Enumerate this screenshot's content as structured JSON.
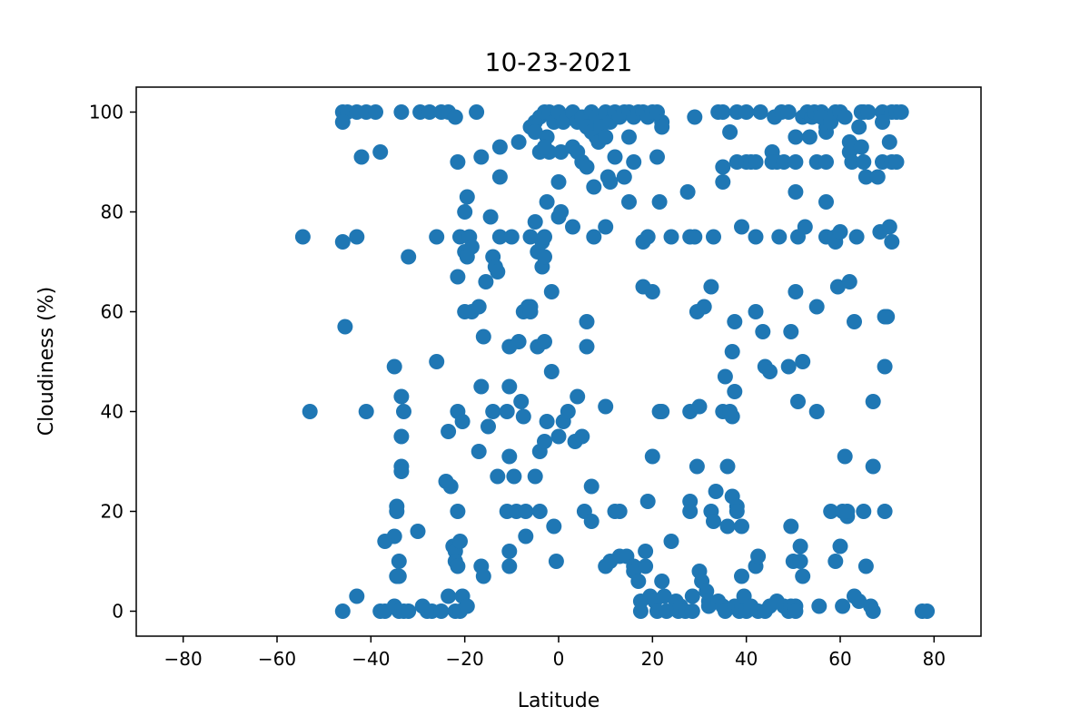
{
  "chart_data": {
    "type": "scatter",
    "title": "10-23-2021",
    "xlabel": "Latitude",
    "ylabel": "Cloudiness (%)",
    "xlim": [
      -90,
      90
    ],
    "ylim": [
      -5,
      105
    ],
    "xticks": [
      -80,
      -60,
      -40,
      -20,
      0,
      20,
      40,
      60,
      80
    ],
    "yticks": [
      0,
      20,
      40,
      60,
      80,
      100
    ],
    "grid": false,
    "legend": "none",
    "color": "#1f77b4",
    "points": [
      [
        -46,
        100
      ],
      [
        -45,
        100
      ],
      [
        -46,
        98
      ],
      [
        -43,
        100
      ],
      [
        -41,
        100
      ],
      [
        -39,
        100
      ],
      [
        -33.5,
        100
      ],
      [
        -29.5,
        100
      ],
      [
        -27.5,
        100
      ],
      [
        -25,
        100
      ],
      [
        -23.5,
        100
      ],
      [
        -22,
        99
      ],
      [
        -17.5,
        100
      ],
      [
        -54.5,
        75
      ],
      [
        -46,
        74
      ],
      [
        -43,
        75
      ],
      [
        -42,
        91
      ],
      [
        -38,
        92
      ],
      [
        -53,
        40
      ],
      [
        -45.5,
        57
      ],
      [
        -32,
        71
      ],
      [
        -26,
        75
      ],
      [
        -26,
        50
      ],
      [
        -41,
        40
      ],
      [
        -35,
        49
      ],
      [
        -33.5,
        43
      ],
      [
        -33,
        40
      ],
      [
        -33.5,
        35
      ],
      [
        -33.5,
        29
      ],
      [
        -33.5,
        28
      ],
      [
        -34.5,
        21
      ],
      [
        -34.5,
        20
      ],
      [
        -30,
        16
      ],
      [
        -35,
        15
      ],
      [
        -37,
        14
      ],
      [
        -34,
        10
      ],
      [
        -34.5,
        7
      ],
      [
        -34,
        7
      ],
      [
        -46,
        0
      ],
      [
        -43,
        3
      ],
      [
        -38,
        0
      ],
      [
        -37,
        0
      ],
      [
        -35,
        1
      ],
      [
        -34,
        0
      ],
      [
        -33,
        0
      ],
      [
        -32,
        0
      ],
      [
        -29,
        1
      ],
      [
        -28,
        0
      ],
      [
        -27,
        0
      ],
      [
        -25,
        0
      ],
      [
        -23.5,
        3
      ],
      [
        -22,
        0
      ],
      [
        -21,
        0
      ],
      [
        -20.5,
        3
      ],
      [
        -19.5,
        1
      ],
      [
        -24,
        26
      ],
      [
        -23.5,
        36
      ],
      [
        -23,
        25
      ],
      [
        -22.5,
        13
      ],
      [
        -22,
        12
      ],
      [
        -22,
        10
      ],
      [
        -21.5,
        9
      ],
      [
        -21,
        14
      ],
      [
        -21.5,
        20
      ],
      [
        -21.5,
        40
      ],
      [
        -20.5,
        38
      ],
      [
        -16.5,
        9
      ],
      [
        -16,
        7
      ],
      [
        -21.5,
        90
      ],
      [
        -21,
        75
      ],
      [
        -20,
        80
      ],
      [
        -19.5,
        83
      ],
      [
        -19,
        75
      ],
      [
        -20,
        72
      ],
      [
        -19.5,
        71
      ],
      [
        -18.5,
        73
      ],
      [
        -21.5,
        67
      ],
      [
        -20,
        60
      ],
      [
        -18.5,
        60
      ],
      [
        -17,
        61
      ],
      [
        -16.5,
        91
      ],
      [
        -16.5,
        45
      ],
      [
        -17,
        32
      ],
      [
        -16,
        55
      ],
      [
        -15.5,
        66
      ],
      [
        -14.5,
        79
      ],
      [
        -14,
        71
      ],
      [
        -13.5,
        69
      ],
      [
        -13,
        68
      ],
      [
        -15,
        37
      ],
      [
        -14,
        40
      ],
      [
        -13,
        27
      ],
      [
        -12.5,
        75
      ],
      [
        -12.5,
        87
      ],
      [
        -12.5,
        93
      ],
      [
        -11,
        40
      ],
      [
        -11,
        20
      ],
      [
        -10.5,
        53
      ],
      [
        -10.5,
        45
      ],
      [
        -10.5,
        31
      ],
      [
        -10.5,
        12
      ],
      [
        -10.5,
        9
      ],
      [
        -10,
        75
      ],
      [
        -9.5,
        27
      ],
      [
        -9,
        20
      ],
      [
        -8.5,
        94
      ],
      [
        -8.5,
        54
      ],
      [
        -8,
        42
      ],
      [
        -7.5,
        60
      ],
      [
        -7.5,
        39
      ],
      [
        -7,
        15
      ],
      [
        -7,
        20
      ],
      [
        -6.5,
        61
      ],
      [
        -6,
        61
      ],
      [
        -6,
        75
      ],
      [
        -6,
        60
      ],
      [
        -5,
        78
      ],
      [
        -5,
        27
      ],
      [
        -4.5,
        53
      ],
      [
        -4.5,
        72
      ],
      [
        -4,
        32
      ],
      [
        -4,
        20
      ],
      [
        -3.5,
        74
      ],
      [
        -3.5,
        69
      ],
      [
        -3,
        75
      ],
      [
        -3,
        71
      ],
      [
        -3,
        54
      ],
      [
        -2.5,
        38
      ],
      [
        -3,
        34
      ],
      [
        -2.5,
        82
      ],
      [
        -2,
        92
      ],
      [
        -1.5,
        64
      ],
      [
        -1.5,
        48
      ],
      [
        -1,
        17
      ],
      [
        0,
        86
      ],
      [
        0,
        79
      ],
      [
        0.5,
        80
      ],
      [
        0,
        35
      ],
      [
        -0.5,
        10
      ],
      [
        1,
        38
      ],
      [
        2,
        40
      ],
      [
        -6,
        97
      ],
      [
        -5,
        98
      ],
      [
        -4,
        99
      ],
      [
        -3,
        100
      ],
      [
        -2.5,
        95
      ],
      [
        -2,
        100
      ],
      [
        -1,
        98
      ],
      [
        0,
        100
      ],
      [
        0.5,
        92
      ],
      [
        1,
        98
      ],
      [
        2,
        99
      ],
      [
        3,
        100
      ],
      [
        4,
        98
      ],
      [
        5,
        99
      ],
      [
        6,
        97
      ],
      [
        7,
        100
      ],
      [
        8,
        99
      ],
      [
        9,
        98
      ],
      [
        10,
        100
      ],
      [
        11,
        98
      ],
      [
        12,
        100
      ],
      [
        13,
        99
      ],
      [
        14,
        100
      ],
      [
        15,
        100
      ],
      [
        16,
        99
      ],
      [
        17,
        100
      ],
      [
        18,
        100
      ],
      [
        19,
        99
      ],
      [
        20,
        100
      ],
      [
        21,
        100
      ],
      [
        22,
        98
      ],
      [
        -5,
        96
      ],
      [
        -4,
        92
      ],
      [
        -3,
        93
      ],
      [
        3,
        93
      ],
      [
        4,
        92
      ],
      [
        5,
        90
      ],
      [
        6,
        89
      ],
      [
        7,
        96
      ],
      [
        8,
        95
      ],
      [
        8.5,
        94
      ],
      [
        9,
        97
      ],
      [
        10,
        95
      ],
      [
        10.5,
        87
      ],
      [
        11,
        86
      ],
      [
        12,
        91
      ],
      [
        14,
        87
      ],
      [
        15,
        95
      ],
      [
        16,
        90
      ],
      [
        21,
        91
      ],
      [
        22,
        97
      ],
      [
        3,
        77
      ],
      [
        4,
        43
      ],
      [
        3.5,
        34
      ],
      [
        5,
        35
      ],
      [
        5.5,
        20
      ],
      [
        6,
        58
      ],
      [
        6,
        53
      ],
      [
        7,
        25
      ],
      [
        7,
        18
      ],
      [
        7.5,
        85
      ],
      [
        7.5,
        75
      ],
      [
        10,
        77
      ],
      [
        10,
        41
      ],
      [
        10,
        9
      ],
      [
        11,
        10
      ],
      [
        12,
        20
      ],
      [
        13,
        20
      ],
      [
        13,
        11
      ],
      [
        15,
        82
      ],
      [
        14.5,
        11
      ],
      [
        16,
        9
      ],
      [
        16,
        8
      ],
      [
        17,
        6
      ],
      [
        17.5,
        2
      ],
      [
        17.5,
        0
      ],
      [
        18,
        74
      ],
      [
        18,
        65
      ],
      [
        18.5,
        12
      ],
      [
        18.5,
        9
      ],
      [
        19,
        75
      ],
      [
        19,
        22
      ],
      [
        19.5,
        3
      ],
      [
        20,
        31
      ],
      [
        20,
        64
      ],
      [
        20.5,
        2
      ],
      [
        21,
        0
      ],
      [
        21.5,
        82
      ],
      [
        21.5,
        40
      ],
      [
        22,
        40
      ],
      [
        22,
        6
      ],
      [
        22.5,
        3
      ],
      [
        23,
        0
      ],
      [
        24,
        14
      ],
      [
        24,
        75
      ],
      [
        25,
        2
      ],
      [
        25.5,
        0
      ],
      [
        26,
        1
      ],
      [
        27,
        0
      ],
      [
        27.5,
        84
      ],
      [
        28,
        75
      ],
      [
        28,
        40
      ],
      [
        28,
        22
      ],
      [
        28,
        20
      ],
      [
        28.5,
        3
      ],
      [
        28.5,
        0
      ],
      [
        29,
        99
      ],
      [
        29,
        75
      ],
      [
        29.5,
        60
      ],
      [
        29.5,
        29
      ],
      [
        30,
        41
      ],
      [
        30,
        8
      ],
      [
        30.5,
        6
      ],
      [
        31,
        61
      ],
      [
        31.5,
        4
      ],
      [
        32,
        2
      ],
      [
        32,
        1
      ],
      [
        32.5,
        65
      ],
      [
        32.5,
        20
      ],
      [
        33,
        18
      ],
      [
        33,
        75
      ],
      [
        33.5,
        24
      ],
      [
        34,
        100
      ],
      [
        34,
        2
      ],
      [
        35,
        100
      ],
      [
        35,
        89
      ],
      [
        35,
        86
      ],
      [
        35,
        40
      ],
      [
        35.5,
        47
      ],
      [
        35,
        1
      ],
      [
        35.5,
        0
      ],
      [
        36,
        29
      ],
      [
        36,
        17
      ],
      [
        36.5,
        96
      ],
      [
        36.5,
        40
      ],
      [
        37,
        39
      ],
      [
        37,
        52
      ],
      [
        37,
        23
      ],
      [
        37.5,
        58
      ],
      [
        37.5,
        44
      ],
      [
        37.5,
        1
      ],
      [
        38,
        100
      ],
      [
        38,
        90
      ],
      [
        38,
        21
      ],
      [
        38,
        20
      ],
      [
        38.5,
        0
      ],
      [
        39,
        77
      ],
      [
        39,
        17
      ],
      [
        39,
        7
      ],
      [
        39,
        1
      ],
      [
        39.5,
        3
      ],
      [
        40,
        100
      ],
      [
        40,
        90
      ],
      [
        40,
        0
      ],
      [
        41,
        90
      ],
      [
        41,
        1
      ],
      [
        42,
        90
      ],
      [
        42,
        75
      ],
      [
        42,
        60
      ],
      [
        42,
        9
      ],
      [
        42.5,
        11
      ],
      [
        42.5,
        0
      ],
      [
        43,
        100
      ],
      [
        43.5,
        56
      ],
      [
        44,
        49
      ],
      [
        44,
        0
      ],
      [
        45,
        48
      ],
      [
        45,
        1
      ],
      [
        45.5,
        92
      ],
      [
        45.5,
        90
      ],
      [
        46,
        99
      ],
      [
        46.5,
        90
      ],
      [
        46.5,
        2
      ],
      [
        47,
        75
      ],
      [
        47.5,
        100
      ],
      [
        48,
        90
      ],
      [
        48,
        1
      ],
      [
        49,
        100
      ],
      [
        49,
        49
      ],
      [
        49,
        0
      ],
      [
        49.5,
        1
      ],
      [
        49.5,
        56
      ],
      [
        49.5,
        17
      ],
      [
        50,
        10
      ],
      [
        50.5,
        95
      ],
      [
        50.5,
        90
      ],
      [
        50.5,
        64
      ],
      [
        50.5,
        84
      ],
      [
        50.5,
        1
      ],
      [
        50.5,
        0
      ],
      [
        51,
        42
      ],
      [
        51,
        75
      ],
      [
        51.5,
        13
      ],
      [
        51.5,
        10
      ],
      [
        52,
        99
      ],
      [
        52,
        50
      ],
      [
        52,
        7
      ],
      [
        52.5,
        77
      ],
      [
        53,
        100
      ],
      [
        53.5,
        95
      ],
      [
        54,
        99
      ],
      [
        54.5,
        100
      ],
      [
        55,
        90
      ],
      [
        55,
        61
      ],
      [
        55,
        40
      ],
      [
        55.5,
        1
      ],
      [
        56,
        100
      ],
      [
        56,
        99
      ],
      [
        57,
        97
      ],
      [
        57,
        96
      ],
      [
        57,
        82
      ],
      [
        57,
        90
      ],
      [
        57,
        75
      ],
      [
        58,
        98
      ],
      [
        58,
        20
      ],
      [
        59,
        100
      ],
      [
        59,
        75
      ],
      [
        59,
        74
      ],
      [
        59,
        10
      ],
      [
        59.5,
        65
      ],
      [
        60,
        100
      ],
      [
        60,
        76
      ],
      [
        60,
        13
      ],
      [
        60.5,
        20
      ],
      [
        60.5,
        1
      ],
      [
        61,
        99
      ],
      [
        61,
        31
      ],
      [
        61.5,
        19
      ],
      [
        61.5,
        20
      ],
      [
        62,
        94
      ],
      [
        62,
        92
      ],
      [
        62,
        66
      ],
      [
        62.5,
        90
      ],
      [
        63,
        93
      ],
      [
        63,
        3
      ],
      [
        63,
        58
      ],
      [
        63.5,
        75
      ],
      [
        64,
        2
      ],
      [
        64,
        97
      ],
      [
        64.5,
        100
      ],
      [
        64.5,
        93
      ],
      [
        65,
        100
      ],
      [
        65,
        90
      ],
      [
        65,
        20
      ],
      [
        65.5,
        87
      ],
      [
        65.5,
        9
      ],
      [
        66,
        100
      ],
      [
        66.5,
        1
      ],
      [
        67,
        42
      ],
      [
        67,
        29
      ],
      [
        67,
        0
      ],
      [
        68,
        87
      ],
      [
        68.5,
        76
      ],
      [
        69,
        100
      ],
      [
        69,
        98
      ],
      [
        69,
        90
      ],
      [
        69.5,
        59
      ],
      [
        69.5,
        49
      ],
      [
        69.5,
        20
      ],
      [
        70,
        59
      ],
      [
        70.5,
        94
      ],
      [
        70.5,
        77
      ],
      [
        71,
        100
      ],
      [
        71,
        90
      ],
      [
        71,
        74
      ],
      [
        72,
        90
      ],
      [
        72,
        100
      ],
      [
        73,
        100
      ],
      [
        77.5,
        0
      ],
      [
        78.5,
        0
      ]
    ]
  }
}
